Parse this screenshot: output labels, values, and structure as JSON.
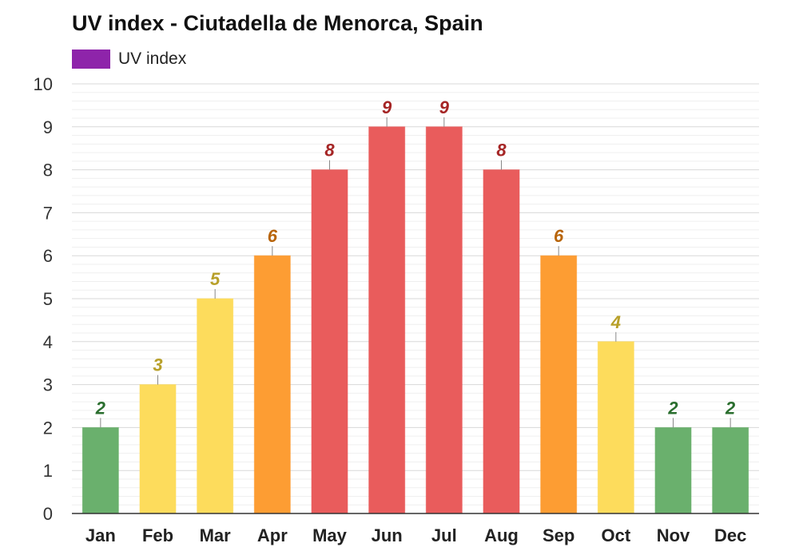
{
  "chart_data": {
    "type": "bar",
    "title": "UV index - Ciutadella de Menorca, Spain",
    "legend": {
      "label": "UV index",
      "color": "#8e24aa",
      "placement": "top-left"
    },
    "categories": [
      "Jan",
      "Feb",
      "Mar",
      "Apr",
      "May",
      "Jun",
      "Jul",
      "Aug",
      "Sep",
      "Oct",
      "Nov",
      "Dec"
    ],
    "series": [
      {
        "name": "UV index",
        "values": [
          2,
          3,
          5,
          6,
          8,
          9,
          9,
          8,
          6,
          4,
          2,
          2
        ]
      }
    ],
    "ylim": [
      0,
      10
    ],
    "yticks": [
      0,
      1,
      2,
      3,
      4,
      5,
      6,
      7,
      8,
      9,
      10
    ],
    "grid": true,
    "level_colors": {
      "low": {
        "bar": "#6ab06d",
        "label": "#2a6e2e"
      },
      "moderate": {
        "bar": "#fddc5c",
        "label": "#b8a02a"
      },
      "high": {
        "bar": "#fd9d33",
        "label": "#b8650a"
      },
      "very_high": {
        "bar": "#e95c5c",
        "label": "#a52525"
      }
    }
  }
}
